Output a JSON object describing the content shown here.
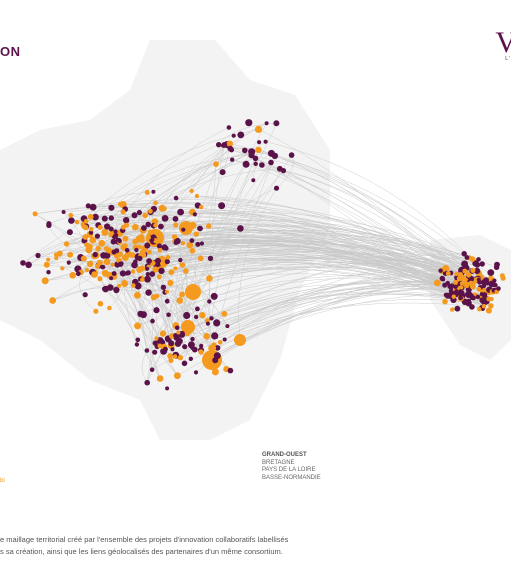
{
  "header": {
    "brand_left_fragment": "ON",
    "brand_right_fragment": "V",
    "brand_right_sub": "L'"
  },
  "region_block": {
    "title": "GRAND-OUEST",
    "lines": [
      "BRETAGNE",
      "PAYS DE LA LOIRE",
      "BASSE-NORMANDIE"
    ]
  },
  "legend_fragment": "bi",
  "caption": {
    "line1": "e maillage territorial créé par l'ensemble des projets d'innovation collaboratifs labellisés",
    "line2": "s sa création, ainsi que les liens géolocalisés des partenaires d'un même consortium."
  },
  "colors": {
    "partner_node": "#5b1248",
    "project_node": "#f39a1f",
    "link": "#c8c8c8",
    "land": "#f3f3f3"
  }
}
